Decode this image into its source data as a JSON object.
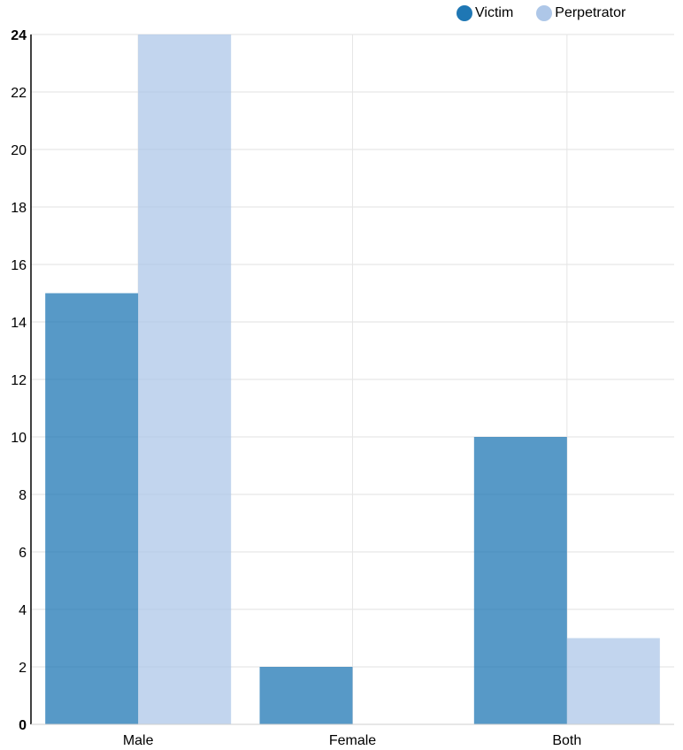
{
  "chart_data": {
    "type": "bar",
    "categories": [
      "Male",
      "Female",
      "Both"
    ],
    "series": [
      {
        "name": "Victim",
        "values": [
          15,
          2,
          10
        ],
        "color": "#1f77b4"
      },
      {
        "name": "Perpetrator",
        "values": [
          24,
          0,
          3
        ],
        "color": "#aec7e8"
      }
    ],
    "ylim": [
      0,
      24
    ],
    "yticks": [
      0,
      2,
      4,
      6,
      8,
      10,
      12,
      14,
      16,
      18,
      20,
      22,
      24
    ],
    "grid": true,
    "legend_position": "top-right"
  }
}
